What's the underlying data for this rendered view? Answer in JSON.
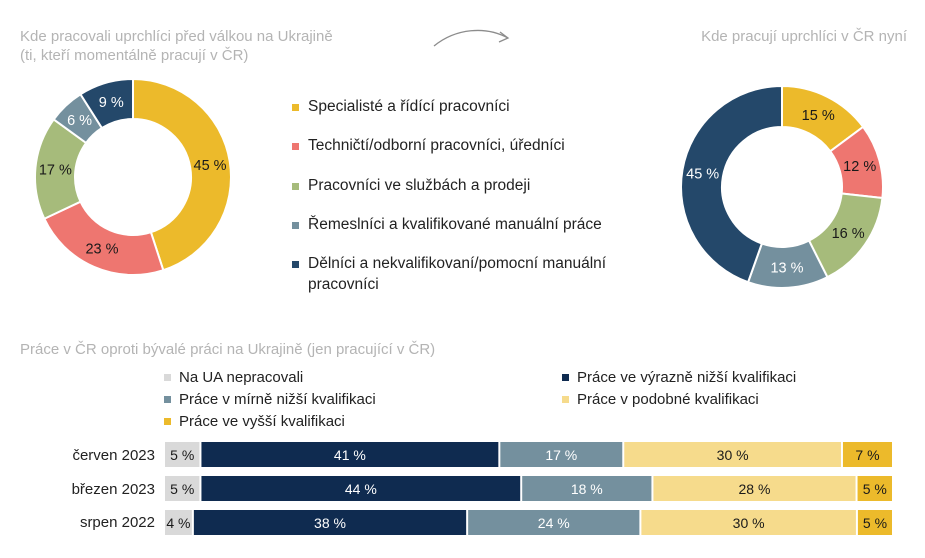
{
  "titles": {
    "left_donut": "Kde pracovali uprchlíci před válkou na Ukrajině (ti, kteří momentálně pracují v ČR)",
    "right_donut": "Kde pracují uprchlíci v ČR nyní",
    "bars": "Práce v ČR oproti bývalé práci na Ukrajině (jen pracující v ČR)"
  },
  "chart_data": [
    {
      "type": "pie",
      "title": "Kde pracovali uprchlíci před válkou na Ukrajině (ti, kteří momentálně pracují v ČR)",
      "categories": [
        "Specialisté a řídící pracovníci",
        "Techničtí/odborní pracovníci, úředníci",
        "Pracovníci ve službách a prodeji",
        "Řemeslníci a kvalifikované manuální práce",
        "Dělníci a nekvalifikovaní/pomocní manuální pracovníci"
      ],
      "values": [
        45,
        23,
        17,
        6,
        9
      ],
      "labels": [
        "45 %",
        "23 %",
        "17 %",
        "6 %",
        "9 %"
      ],
      "colors": [
        "#ECBA2B",
        "#EE7670",
        "#A6BB7B",
        "#74909E",
        "#24486A"
      ],
      "label_colors": [
        "#1a1a1a",
        "#1a1a1a",
        "#1a1a1a",
        "#ffffff",
        "#ffffff"
      ]
    },
    {
      "type": "pie",
      "title": "Kde pracují uprchlíci v ČR nyní",
      "categories": [
        "Specialisté a řídící pracovníci",
        "Techničtí/odborní pracovníci, úředníci",
        "Pracovníci ve službách a prodeji",
        "Řemeslníci a kvalifikované manuální práce",
        "Dělníci a nekvalifikovaní/pomocní manuální pracovníci"
      ],
      "values": [
        15,
        12,
        16,
        13,
        45
      ],
      "labels": [
        "15 %",
        "12 %",
        "16 %",
        "13 %",
        "45 %"
      ],
      "colors": [
        "#ECBA2B",
        "#EE7670",
        "#A6BB7B",
        "#74909E",
        "#24486A"
      ],
      "label_colors": [
        "#1a1a1a",
        "#1a1a1a",
        "#1a1a1a",
        "#ffffff",
        "#ffffff"
      ]
    },
    {
      "type": "bar",
      "orientation": "horizontal",
      "stacked": true,
      "title": "Práce v ČR oproti bývalé práci na Ukrajině (jen pracující v ČR)",
      "categories": [
        "červen 2023",
        "březen 2023",
        "srpen 2022"
      ],
      "series": [
        {
          "name": "Na UA nepracovali",
          "values": [
            5,
            5,
            4
          ],
          "labels": [
            "5 %",
            "5 %",
            "4 %"
          ],
          "color": "#D9D9D9",
          "text_color": "#1a1a1a"
        },
        {
          "name": "Práce ve výrazně nižší kvalifikaci",
          "values": [
            41,
            44,
            38
          ],
          "labels": [
            "41 %",
            "44 %",
            "38 %"
          ],
          "color": "#0F2B50",
          "text_color": "#ffffff"
        },
        {
          "name": "Práce v mírně nižší kvalifikaci",
          "values": [
            17,
            18,
            24
          ],
          "labels": [
            "17 %",
            "18 %",
            "24 %"
          ],
          "color": "#74909E",
          "text_color": "#ffffff"
        },
        {
          "name": "Práce v podobné kvalifikaci",
          "values": [
            30,
            28,
            30
          ],
          "labels": [
            "30 %",
            "28 %",
            "30 %"
          ],
          "color": "#F6DB8C",
          "text_color": "#1a1a1a"
        },
        {
          "name": "Práce ve vyšší kvalifikaci",
          "values": [
            7,
            5,
            5
          ],
          "labels": [
            "7 %",
            "5 %",
            "5 %"
          ],
          "color": "#ECBA2B",
          "text_color": "#1a1a1a"
        }
      ]
    }
  ],
  "legend_categories": [
    {
      "label": "Specialisté a řídící pracovníci",
      "color": "#ECBA2B"
    },
    {
      "label": "Techničtí/odborní pracovníci, úředníci",
      "color": "#EE7670"
    },
    {
      "label": "Pracovníci ve službách a prodeji",
      "color": "#A6BB7B"
    },
    {
      "label": "Řemeslníci a kvalifikované manuální práce",
      "color": "#74909E"
    },
    {
      "label": "Dělníci a nekvalifikovaní/pomocní manuální pracovníci",
      "color": "#24486A"
    }
  ]
}
